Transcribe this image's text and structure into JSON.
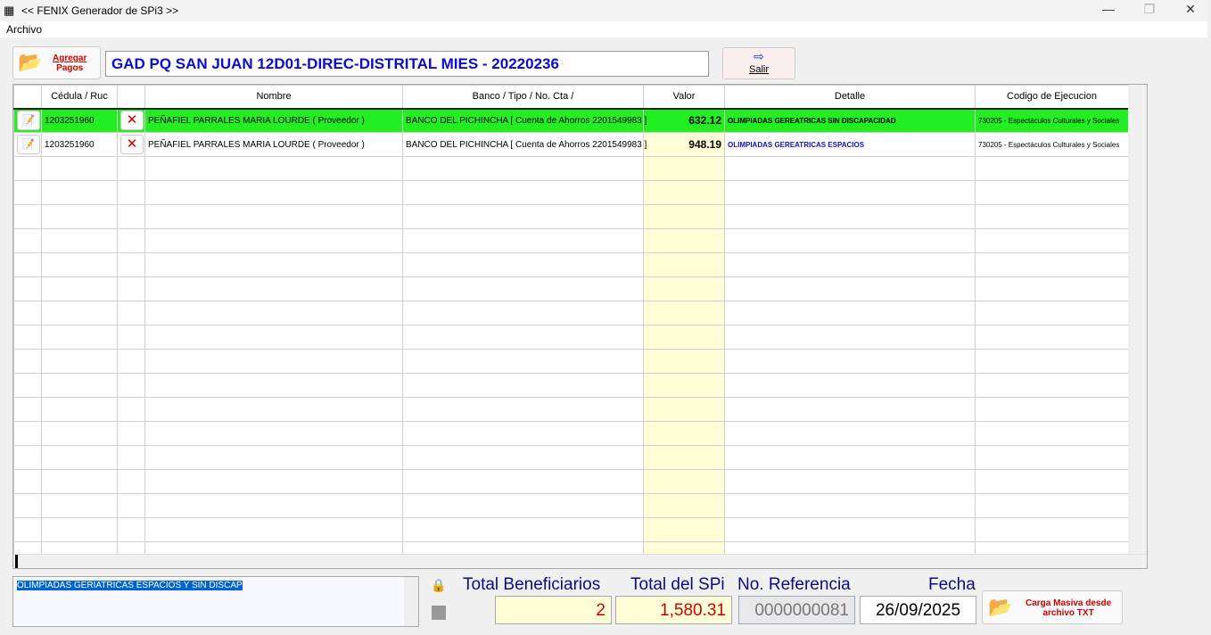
{
  "window": {
    "title": "<< FENIX Generador de SPi3 >>",
    "minimize": "—",
    "maximize": "❐",
    "close": "✕"
  },
  "menu": {
    "archivo": "Archivo"
  },
  "toolbar": {
    "agregar_line1": "Agregar",
    "agregar_line2": "Pagos",
    "header_text": "GAD PQ SAN JUAN 12D01-DIREC-DISTRITAL MIES - 20220236",
    "salir": "Salir"
  },
  "grid": {
    "columns": [
      "",
      "Cédula / Ruc",
      "",
      "Nombre",
      "Banco / Tipo / No. Cta /",
      "Valor",
      "Detalle",
      "Codigo de Ejecucion"
    ],
    "rows": [
      {
        "cedula": "1203251960",
        "nombre": "PEÑAFIEL PARRALES MARIA LOURDE   ( Proveedor )",
        "banco": "BANCO DEL PICHINCHA [ Cuenta de Ahorros 2201549983 ]",
        "valor": "632.12",
        "detalle": "OLIMPIADAS GEREATRICAS SIN DISCAPACIDAD",
        "codigo": "730205 - Espectáculos Culturales y Sociales",
        "selected": true
      },
      {
        "cedula": "1203251960",
        "nombre": "PEÑAFIEL PARRALES MARIA LOURDE   ( Proveedor )",
        "banco": "BANCO DEL PICHINCHA [ Cuenta de Ahorros 2201549983 ]",
        "valor": "948.19",
        "detalle": "OLIMPIADAS GEREATRICAS ESPACIOS",
        "codigo": "730205 - Espectáculos Culturales y Sociales",
        "selected": false
      }
    ]
  },
  "footer": {
    "memo": "OLIMPIADAS GERIATRICAS ESPACIOS Y SIN DISCAP",
    "total_beneficiarios_label": "Total Beneficiarios",
    "total_beneficiarios": "2",
    "total_spi_label": "Total del SPi",
    "total_spi": "1,580.31",
    "referencia_label": "No. Referencia",
    "referencia": "0000000081",
    "fecha_label": "Fecha",
    "fecha": "26/09/2025",
    "carga_line1": "Carga Masiva desde",
    "carga_line2": "archivo TXT"
  },
  "colors": {
    "selected_row": "#22ee22",
    "valor_bg": "#ffffd8",
    "accent_red": "#d00000",
    "title_blue": "#0a0ad0"
  }
}
